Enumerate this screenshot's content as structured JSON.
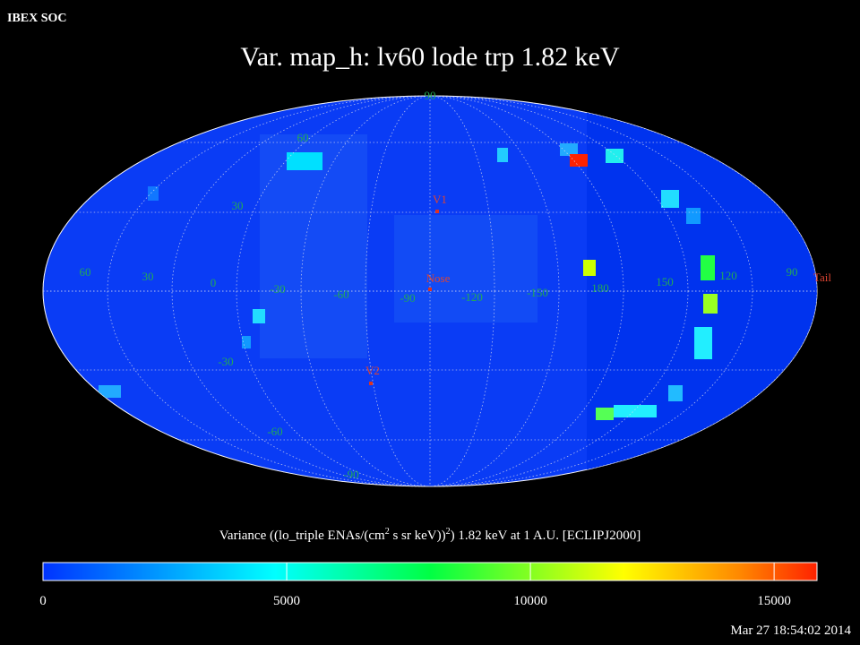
{
  "header": {
    "label": "IBEX SOC",
    "timestamp": "Mar 27 18:54:02 2014"
  },
  "map": {
    "title": "Var. map_h: lv60 lode trp 1.82 keV",
    "longitude_labels": [
      60,
      30,
      0,
      -30,
      -60,
      -90,
      -120,
      -150,
      180,
      150,
      120,
      90
    ],
    "latitude_labels": [
      90,
      60,
      30,
      -30,
      -60,
      -90
    ],
    "markers": [
      "V1",
      "Nose",
      "V2",
      "Tail"
    ]
  },
  "colorbar": {
    "label_parts": [
      "Variance ((lo_triple ENAs/(cm",
      "2",
      " s sr keV))",
      "2",
      ") 1.82 keV at 1 A.U. [ECLIPJ2000]"
    ],
    "range": [
      0,
      15880
    ],
    "ticks": [
      0,
      5000,
      10000,
      15000
    ]
  }
}
